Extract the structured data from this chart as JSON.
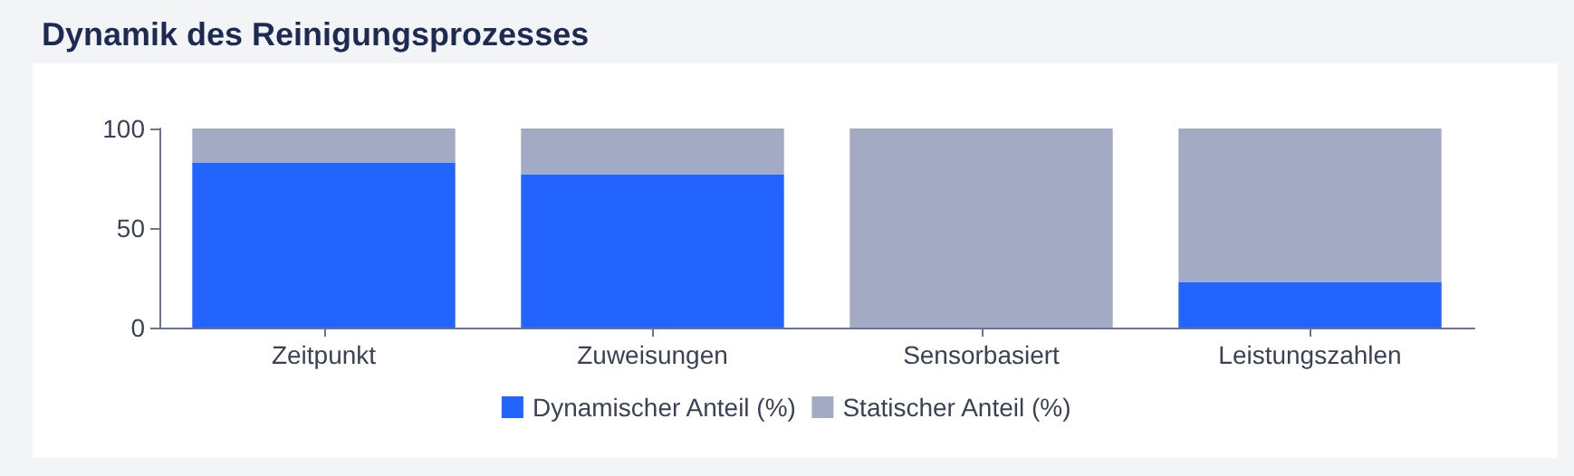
{
  "chart_data": {
    "type": "bar",
    "title": "Dynamik des Reinigungsprozesses",
    "categories": [
      "Zeitpunkt",
      "Zuweisungen",
      "Sensorbasiert",
      "Leistungszahlen"
    ],
    "series": [
      {
        "name": "Dynamischer Anteil (%)",
        "color": "#2364fe",
        "values": [
          83,
          77,
          0,
          23
        ]
      },
      {
        "name": "Statischer Anteil (%)",
        "color": "#a2abc3",
        "values": [
          17,
          23,
          100,
          77
        ]
      }
    ],
    "stacked": true,
    "ylim": [
      0,
      100
    ],
    "yticks": [
      0,
      50,
      100
    ],
    "grid": false,
    "legend": "bottom"
  }
}
